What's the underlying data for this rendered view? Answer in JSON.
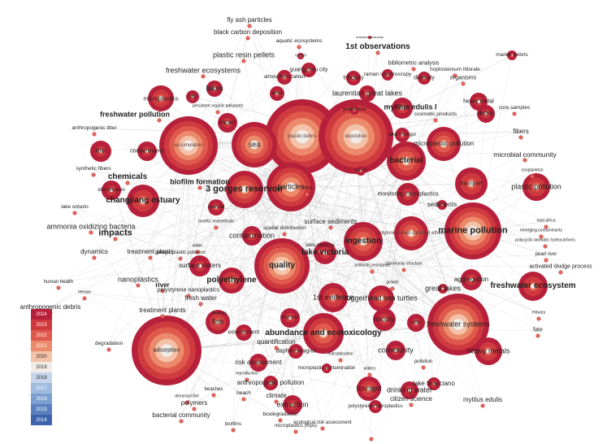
{
  "legend": {
    "years": [
      {
        "label": "2024",
        "color": "#b7203a"
      },
      {
        "label": "2023",
        "color": "#cf3a3f"
      },
      {
        "label": "2022",
        "color": "#df5a4c"
      },
      {
        "label": "2021",
        "color": "#ec8b6c"
      },
      {
        "label": "2020",
        "color": "#f4c2a8"
      },
      {
        "label": "2019",
        "color": "#f1ece8"
      },
      {
        "label": "2018",
        "color": "#c5d6ea"
      },
      {
        "label": "2017",
        "color": "#9fbbdf"
      },
      {
        "label": "2016",
        "color": "#7b9fd1"
      },
      {
        "label": "2015",
        "color": "#5a80c0"
      },
      {
        "label": "2014",
        "color": "#3e63ad"
      }
    ]
  },
  "keywords": [
    "fly ash particles",
    "black carbon deposition",
    "aquatic ecosystems",
    "brisbane peninsula",
    "plastic resin pellets",
    "ocean",
    "1st observations",
    "marine debris",
    "freshwater ecosystems",
    "guangzhou city",
    "bibliometric analysis",
    "hoplostemum littorale",
    "atmospheric fallout",
    "tributary",
    "raman spectroscopy",
    "diversity",
    "organisms",
    "lakes",
    "microplastics",
    "city",
    "persistent organic pollutants",
    "area",
    "laurentian great lakes",
    "heavy metal",
    "freshwater pollution",
    "mytilus edulis l",
    "core samples",
    "yellow sea",
    "cosmetic products",
    "debris",
    "impact",
    "anthropogenic litter",
    "accumulation",
    "plastic debris",
    "deposition",
    "lake hovsgol",
    "fibers",
    "litter",
    "contaminants",
    "sea",
    "microplastic pollution",
    "microbial community",
    "synthetic fibers",
    "bacterial",
    "zooplankton",
    "chemicals",
    "biofilm formation",
    "marine",
    "identification",
    "particles",
    "3 gorges reservoir",
    "transport",
    "plastic pollution",
    "changjiang estuary",
    "china",
    "monitoring microplastics",
    "lake ontario",
    "coastal",
    "sediments",
    "marine pollution",
    "ammonia oxidizing bacteria",
    "benthic invertebrate",
    "spatial distribution",
    "surface sediments",
    "east africa",
    "emerging contaminants",
    "impacts",
    "contamination",
    "ingestion",
    "polybrominated diphenyl ethers",
    "lates niloticus",
    "polycyclic aromatic hydrocarbons",
    "dynamics",
    "treatment plants",
    "pelagic plastic pollution",
    "water",
    "lake victoria",
    "pearl river",
    "surface waters",
    "quality",
    "antibiotic resistance",
    "community structure",
    "activated sludge process",
    "human health",
    "nanoplastics",
    "river",
    "polyethylene",
    "polystyrene nanoplastics",
    "growth",
    "aggregation",
    "great lakes",
    "freshwater ecosystem",
    "release",
    "fresh water",
    "1st evidence",
    "loggerhead sea turtles",
    "treatment plants",
    "bivalves",
    "anthropogenic debris",
    "estuary",
    "fish",
    "exposure",
    "toxicity",
    "lake",
    "freshwater systems",
    "fate",
    "environment",
    "abundance and ecotoxicology",
    "degradation",
    "quantification",
    "daphnia magna",
    "community",
    "heavy metals",
    "risk assessment",
    "eutrophication",
    "pollution",
    "adsorption",
    "microplastic contamination",
    "waters",
    "anthropogenic pollution",
    "reproduction",
    "beaches",
    "hovsgol",
    "drinking water",
    "lake bracciano",
    "demersal fish",
    "beach",
    "climate",
    "citizen science",
    "polymers",
    "polystyrene microplastics",
    "mytilus edulis",
    "extraction",
    "biodegradation",
    "bacterial community",
    "biofilms",
    "ecological risk assessment",
    "microplastics (mps)"
  ]
}
